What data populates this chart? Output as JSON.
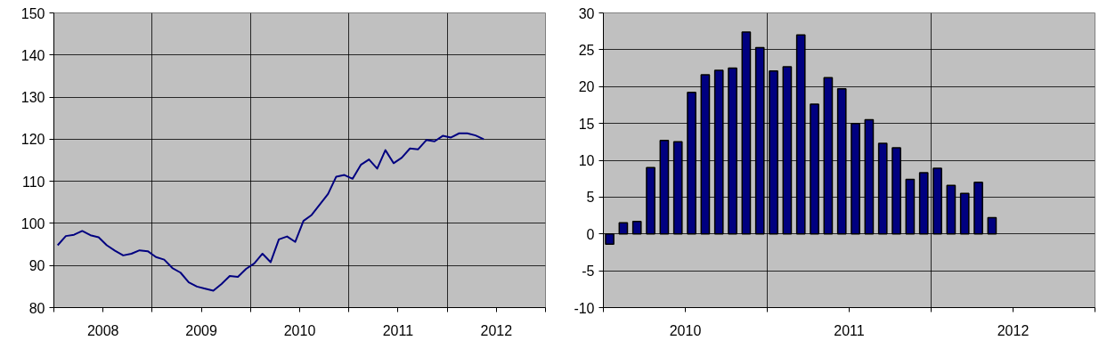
{
  "chart_data": [
    {
      "type": "line",
      "x": [
        "2008-01-15",
        "2008-02-15",
        "2008-03-15",
        "2008-04-15",
        "2008-05-15",
        "2008-06-15",
        "2008-07-15",
        "2008-08-15",
        "2008-09-15",
        "2008-10-15",
        "2008-11-15",
        "2008-12-15",
        "2009-01-15",
        "2009-02-15",
        "2009-03-15",
        "2009-04-15",
        "2009-05-15",
        "2009-06-15",
        "2009-07-15",
        "2009-08-15",
        "2009-09-15",
        "2009-10-15",
        "2009-11-15",
        "2009-12-15",
        "2010-01-15",
        "2010-02-15",
        "2010-03-15",
        "2010-04-15",
        "2010-05-15",
        "2010-06-15",
        "2010-07-15",
        "2010-08-15",
        "2010-09-15",
        "2010-10-15",
        "2010-11-15",
        "2010-12-15",
        "2011-01-15",
        "2011-02-15",
        "2011-03-15",
        "2011-04-15",
        "2011-05-15",
        "2011-06-15",
        "2011-07-15",
        "2011-08-15",
        "2011-09-15",
        "2011-10-15",
        "2011-11-15",
        "2011-12-15",
        "2012-01-15",
        "2012-02-15",
        "2012-03-15",
        "2012-04-15",
        "2012-05-15"
      ],
      "series": [
        {
          "color": "#000080",
          "values": [
            94.8,
            97,
            97.3,
            98.2,
            97.2,
            96.7,
            94.8,
            93.5,
            92.4,
            92.8,
            93.6,
            93.4,
            92,
            91.4,
            89.4,
            88.3,
            86,
            85,
            84.5,
            84,
            85.6,
            87.5,
            87.3,
            89.2,
            90.5,
            92.8,
            90.8,
            96.2,
            96.9,
            95.6,
            100.6,
            102,
            104.5,
            107,
            111.1,
            111.5,
            110.6,
            113.9,
            115.2,
            113,
            117.4,
            114.3,
            115.6,
            117.8,
            117.6,
            119.8,
            119.5,
            120.8,
            120.4,
            121.4,
            121.4,
            120.9,
            120
          ]
        }
      ],
      "xlim": [
        "2008-01-01",
        "2013-01-01"
      ],
      "xticks": [
        {
          "value": "2008-01-01",
          "label": null
        },
        {
          "value": "2008-07-01",
          "label": "2008"
        },
        {
          "value": "2009-01-01",
          "label": null
        },
        {
          "value": "2009-07-01",
          "label": "2009"
        },
        {
          "value": "2010-01-01",
          "label": null
        },
        {
          "value": "2010-07-01",
          "label": "2010"
        },
        {
          "value": "2011-01-01",
          "label": null
        },
        {
          "value": "2011-07-01",
          "label": "2011"
        },
        {
          "value": "2012-01-01",
          "label": null
        },
        {
          "value": "2012-07-01",
          "label": "2012"
        },
        {
          "value": "2013-01-01",
          "label": null
        }
      ],
      "ylim": [
        80,
        150
      ],
      "yticks": [
        80,
        90,
        100,
        110,
        120,
        130,
        140,
        150
      ],
      "grid": true,
      "marker": "none",
      "line_style": "solid"
    },
    {
      "type": "bar",
      "x": [
        "2010-01-15",
        "2010-02-15",
        "2010-03-15",
        "2010-04-15",
        "2010-05-15",
        "2010-06-15",
        "2010-07-15",
        "2010-08-15",
        "2010-09-15",
        "2010-10-15",
        "2010-11-15",
        "2010-12-15",
        "2011-01-15",
        "2011-02-15",
        "2011-03-15",
        "2011-04-15",
        "2011-05-15",
        "2011-06-15",
        "2011-07-15",
        "2011-08-15",
        "2011-09-15",
        "2011-10-15",
        "2011-11-15",
        "2011-12-15",
        "2012-01-15",
        "2012-02-15",
        "2012-03-15",
        "2012-04-15",
        "2012-05-15"
      ],
      "series": [
        {
          "color": "#000080",
          "values": [
            -1.4,
            1.5,
            1.7,
            9,
            12.7,
            12.5,
            19.2,
            21.6,
            22.2,
            22.5,
            27.4,
            25.3,
            22.1,
            22.7,
            27,
            17.6,
            21.2,
            19.7,
            15,
            15.5,
            12.3,
            11.7,
            7.4,
            8.3,
            8.9,
            6.6,
            5.5,
            7,
            2.2
          ]
        }
      ],
      "xlim": [
        "2010-01-01",
        "2013-01-01"
      ],
      "xticks": [
        {
          "value": "2010-01-01",
          "label": null
        },
        {
          "value": "2010-07-01",
          "label": "2010"
        },
        {
          "value": "2011-01-01",
          "label": null
        },
        {
          "value": "2011-07-01",
          "label": "2011"
        },
        {
          "value": "2012-01-01",
          "label": null
        },
        {
          "value": "2012-07-01",
          "label": "2012"
        },
        {
          "value": "2013-01-01",
          "label": null
        }
      ],
      "ylim": [
        -10,
        30
      ],
      "yticks": [
        -10,
        -5,
        0,
        5,
        10,
        15,
        20,
        25,
        30
      ],
      "grid": true
    }
  ]
}
